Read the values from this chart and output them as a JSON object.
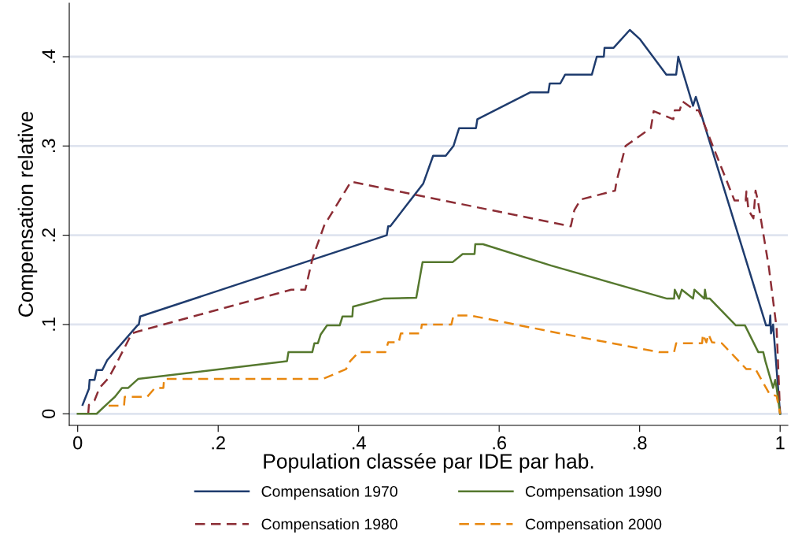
{
  "chart_data": {
    "type": "line",
    "xlabel": "Population classée par IDE par hab.",
    "ylabel": "Compensation relative",
    "xlim": [
      -0.012,
      1.011
    ],
    "ylim": [
      -0.013,
      0.46
    ],
    "xticks": [
      0,
      {
        "value": 0.2,
        "label": ".2"
      },
      {
        "value": 0.4,
        "label": ".4"
      },
      {
        "value": 0.6,
        "label": ".6"
      },
      {
        "value": 0.8,
        "label": ".8"
      },
      1
    ],
    "yticks": [
      0,
      {
        "value": 0.1,
        "label": ".1"
      },
      {
        "value": 0.2,
        "label": ".2"
      },
      {
        "value": 0.3,
        "label": ".3"
      },
      {
        "value": 0.4,
        "label": ".4"
      }
    ],
    "grid": "y",
    "legend": "bottom",
    "marker": "none",
    "series": [
      {
        "name": "Compensation 1970",
        "color": "#1f3c6e",
        "line_style": "solid",
        "x": [
          0.007,
          0.016,
          0.017,
          0.024,
          0.027,
          0.035,
          0.042,
          0.085,
          0.087,
          0.089,
          0.44,
          0.442,
          0.445,
          0.492,
          0.506,
          0.524,
          0.535,
          0.539,
          0.543,
          0.567,
          0.569,
          0.644,
          0.67,
          0.672,
          0.687,
          0.694,
          0.732,
          0.739,
          0.749,
          0.75,
          0.763,
          0.786,
          0.8,
          0.838,
          0.852,
          0.855,
          0.876,
          0.88,
          0.98,
          0.985,
          0.986,
          0.987,
          0.99,
          1.0
        ],
        "values": [
          0.01,
          0.028,
          0.038,
          0.038,
          0.049,
          0.049,
          0.06,
          0.099,
          0.1,
          0.109,
          0.2,
          0.21,
          0.21,
          0.258,
          0.289,
          0.289,
          0.3,
          0.31,
          0.32,
          0.32,
          0.33,
          0.36,
          0.36,
          0.37,
          0.37,
          0.38,
          0.38,
          0.4,
          0.4,
          0.41,
          0.41,
          0.43,
          0.42,
          0.38,
          0.38,
          0.4,
          0.345,
          0.355,
          0.099,
          0.099,
          0.11,
          0.09,
          0.1,
          0.0
        ]
      },
      {
        "name": "Compensation 1980",
        "color": "#8c2d35",
        "line_style": "dashed",
        "x": [
          0.015,
          0.016,
          0.024,
          0.031,
          0.044,
          0.055,
          0.077,
          0.085,
          0.304,
          0.324,
          0.334,
          0.34,
          0.346,
          0.351,
          0.389,
          0.702,
          0.707,
          0.716,
          0.765,
          0.767,
          0.78,
          0.816,
          0.82,
          0.848,
          0.85,
          0.857,
          0.861,
          0.879,
          0.884,
          0.935,
          0.951,
          0.952,
          0.955,
          0.962,
          0.965,
          0.968,
          0.984,
          0.995,
          1.0
        ],
        "values": [
          0.0,
          0.01,
          0.015,
          0.029,
          0.04,
          0.056,
          0.09,
          0.092,
          0.139,
          0.139,
          0.173,
          0.187,
          0.2,
          0.211,
          0.26,
          0.21,
          0.228,
          0.24,
          0.25,
          0.26,
          0.3,
          0.32,
          0.339,
          0.33,
          0.34,
          0.34,
          0.35,
          0.34,
          0.34,
          0.239,
          0.239,
          0.249,
          0.228,
          0.219,
          0.25,
          0.24,
          0.164,
          0.096,
          0.0
        ]
      },
      {
        "name": "Compensation 1990",
        "color": "#55782e",
        "line_style": "solid",
        "x": [
          0.0,
          0.027,
          0.046,
          0.053,
          0.063,
          0.072,
          0.086,
          0.298,
          0.3,
          0.334,
          0.337,
          0.342,
          0.346,
          0.355,
          0.373,
          0.377,
          0.391,
          0.392,
          0.435,
          0.482,
          0.491,
          0.534,
          0.548,
          0.565,
          0.566,
          0.577,
          0.674,
          0.839,
          0.849,
          0.85,
          0.856,
          0.86,
          0.876,
          0.878,
          0.892,
          0.893,
          0.895,
          0.9,
          0.937,
          0.95,
          0.969,
          0.976,
          0.979,
          0.99,
          0.993,
          0.995,
          1.0
        ],
        "values": [
          0.0,
          0.0,
          0.014,
          0.019,
          0.029,
          0.029,
          0.039,
          0.059,
          0.069,
          0.069,
          0.079,
          0.079,
          0.089,
          0.099,
          0.099,
          0.109,
          0.109,
          0.12,
          0.129,
          0.13,
          0.17,
          0.17,
          0.179,
          0.179,
          0.19,
          0.19,
          0.166,
          0.129,
          0.129,
          0.139,
          0.129,
          0.139,
          0.129,
          0.139,
          0.129,
          0.139,
          0.129,
          0.129,
          0.099,
          0.099,
          0.069,
          0.069,
          0.059,
          0.029,
          0.038,
          0.029,
          0.0
        ]
      },
      {
        "name": "Compensation 2000",
        "color": "#e8870f",
        "line_style": "dashed",
        "x": [
          0.044,
          0.066,
          0.067,
          0.099,
          0.11,
          0.122,
          0.123,
          0.349,
          0.382,
          0.388,
          0.4,
          0.438,
          0.442,
          0.457,
          0.46,
          0.488,
          0.49,
          0.532,
          0.535,
          0.56,
          0.674,
          0.828,
          0.849,
          0.852,
          0.889,
          0.89,
          0.895,
          0.898,
          0.903,
          0.917,
          0.952,
          0.965,
          0.985,
          0.995,
          1.0
        ],
        "values": [
          0.009,
          0.009,
          0.019,
          0.019,
          0.029,
          0.029,
          0.039,
          0.039,
          0.05,
          0.059,
          0.069,
          0.069,
          0.08,
          0.08,
          0.09,
          0.09,
          0.1,
          0.1,
          0.11,
          0.11,
          0.092,
          0.069,
          0.069,
          0.079,
          0.079,
          0.089,
          0.08,
          0.089,
          0.08,
          0.079,
          0.05,
          0.05,
          0.022,
          0.02,
          0.0
        ]
      }
    ]
  }
}
